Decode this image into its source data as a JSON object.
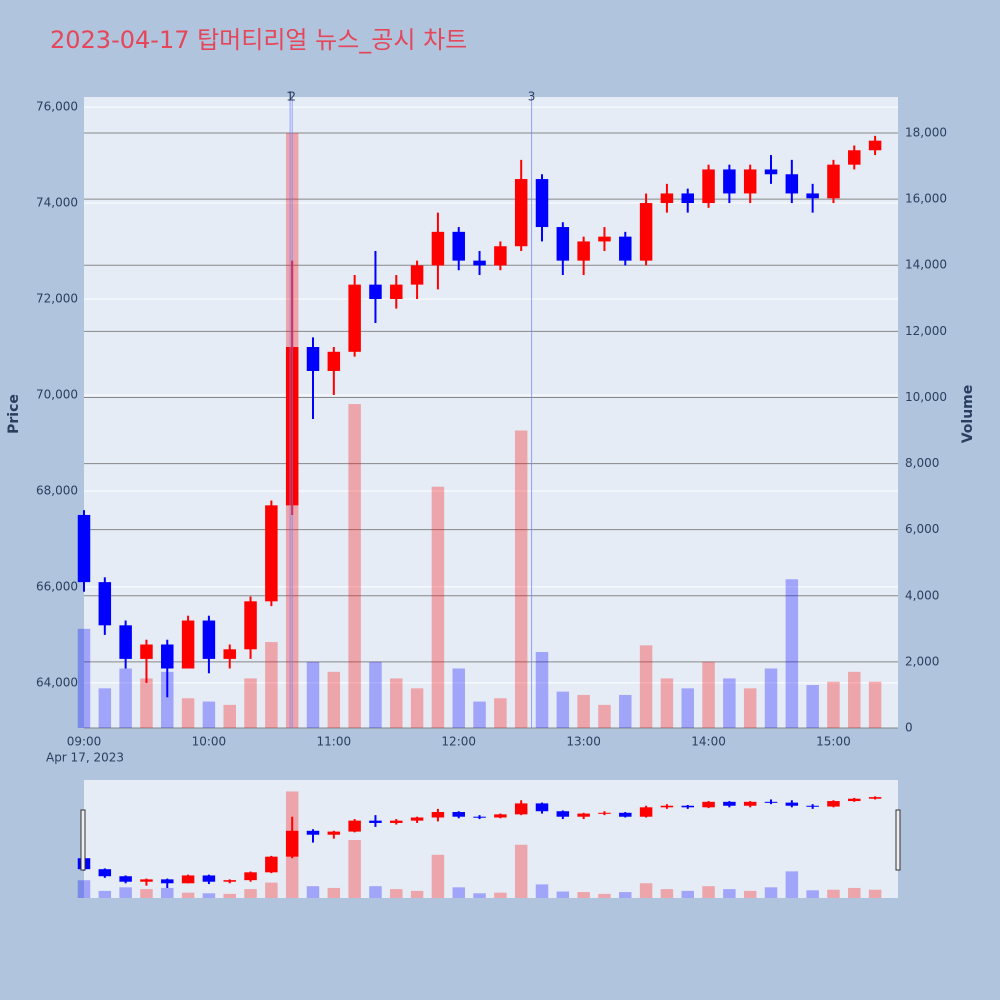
{
  "chart_data": {
    "type": "candlestick",
    "title": "2023-04-17 탑머티리얼 뉴스_공시 차트",
    "x": [
      "09:00",
      "09:10",
      "09:20",
      "09:30",
      "09:40",
      "09:50",
      "10:00",
      "10:10",
      "10:20",
      "10:30",
      "10:40",
      "10:50",
      "11:00",
      "11:10",
      "11:20",
      "11:30",
      "11:40",
      "11:50",
      "12:00",
      "12:10",
      "12:20",
      "12:30",
      "12:40",
      "12:50",
      "13:00",
      "13:10",
      "13:20",
      "13:30",
      "13:40",
      "13:50",
      "14:00",
      "14:10",
      "14:20",
      "14:30",
      "14:40",
      "14:50",
      "15:00",
      "15:10",
      "15:20"
    ],
    "open": [
      67500,
      66100,
      65200,
      64500,
      64800,
      64300,
      65300,
      64500,
      64700,
      65700,
      67700,
      71000,
      70500,
      70900,
      72300,
      72000,
      72300,
      72700,
      73400,
      72800,
      72700,
      73100,
      74500,
      73500,
      72800,
      73200,
      73300,
      72800,
      74000,
      74200,
      74000,
      74700,
      74200,
      74700,
      74600,
      74200,
      74100,
      74800,
      75100
    ],
    "high": [
      67600,
      66200,
      65300,
      64900,
      64900,
      65400,
      65400,
      64800,
      65800,
      67800,
      72800,
      71200,
      71000,
      72500,
      73000,
      72500,
      72800,
      73800,
      73500,
      73000,
      73200,
      74900,
      74600,
      73600,
      73300,
      73500,
      73400,
      74200,
      74400,
      74300,
      74800,
      74800,
      74800,
      75000,
      74900,
      74400,
      74900,
      75200,
      75400
    ],
    "low": [
      65900,
      65000,
      64300,
      64000,
      63700,
      64300,
      64200,
      64300,
      64500,
      65600,
      67500,
      69500,
      70000,
      70800,
      71500,
      71800,
      72000,
      72200,
      72600,
      72500,
      72600,
      73000,
      73200,
      72500,
      72500,
      73000,
      72700,
      72700,
      73800,
      73800,
      73900,
      74000,
      74000,
      74400,
      74000,
      73800,
      74000,
      74700,
      75000
    ],
    "close": [
      66100,
      65200,
      64500,
      64800,
      64300,
      65300,
      64500,
      64700,
      65700,
      67700,
      71000,
      70500,
      70900,
      72300,
      72000,
      72300,
      72700,
      73400,
      72800,
      72700,
      73100,
      74500,
      73500,
      72800,
      73200,
      73300,
      72800,
      74000,
      74200,
      74000,
      74700,
      74200,
      74700,
      74600,
      74200,
      74100,
      74800,
      75100,
      75300
    ],
    "volume": [
      3000,
      1200,
      1800,
      1500,
      1700,
      900,
      800,
      700,
      1500,
      2600,
      18000,
      2000,
      1700,
      9800,
      2000,
      1500,
      1200,
      7300,
      1800,
      800,
      900,
      9000,
      2300,
      1100,
      1000,
      700,
      1000,
      2500,
      1500,
      1200,
      2000,
      1500,
      1200,
      1800,
      4500,
      1300,
      1400,
      1700,
      1400
    ],
    "up_color": "#ff0000",
    "down_color": "#0000ff",
    "xlim": [
      "09:00",
      "15:31"
    ],
    "xticks": [
      "09:00",
      "10:00",
      "11:00",
      "12:00",
      "13:00",
      "14:00",
      "15:00"
    ],
    "x_date_label": "Apr 17, 2023",
    "ylim": [
      63060,
      76210
    ],
    "yticks": [
      {
        "value": 64000,
        "label": "64,000"
      },
      {
        "value": 66000,
        "label": "66,000"
      },
      {
        "value": 68000,
        "label": "68,000"
      },
      {
        "value": 70000,
        "label": "70,000"
      },
      {
        "value": 72000,
        "label": "72,000"
      },
      {
        "value": 74000,
        "label": "74,000"
      },
      {
        "value": 76000,
        "label": "76,000"
      }
    ],
    "y2lim": [
      0,
      19090
    ],
    "y2ticks": [
      0,
      {
        "value": 2000,
        "label": "2,000"
      },
      {
        "value": 4000,
        "label": "4,000"
      },
      {
        "value": 6000,
        "label": "6,000"
      },
      {
        "value": 8000,
        "label": "8,000"
      },
      {
        "value": 10000,
        "label": "10,000"
      },
      {
        "value": 12000,
        "label": "12,000"
      },
      {
        "value": 14000,
        "label": "14,000"
      },
      {
        "value": 16000,
        "label": "16,000"
      },
      {
        "value": 18000,
        "label": "18,000"
      }
    ],
    "ylabel": "Price",
    "y2label": "Volume",
    "annotations": [
      {
        "x": "10:39",
        "label": "1"
      },
      {
        "x": "10:40",
        "label": "2"
      },
      {
        "x": "12:35",
        "label": "3"
      }
    ],
    "grid": true,
    "range_slider": true
  }
}
